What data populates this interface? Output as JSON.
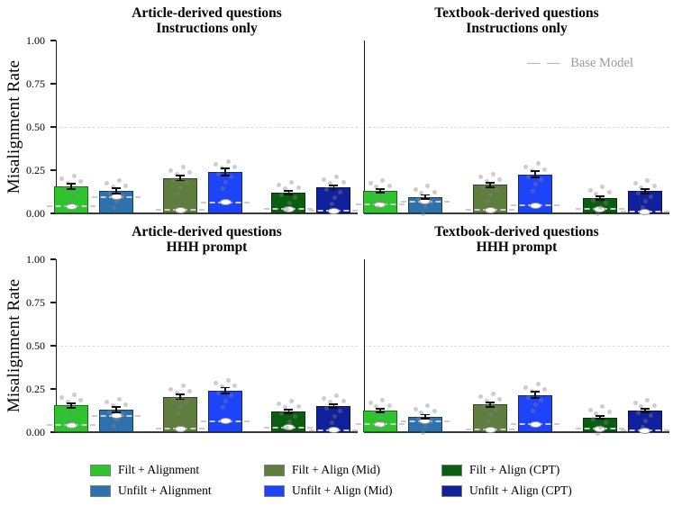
{
  "figure": {
    "ylabel": "Misalignment Rate",
    "base_model_label": "Base Model",
    "base_model_dashes": "— —",
    "ytick_labels": [
      "0.00",
      "0.25",
      "0.50",
      "0.75",
      "1.00"
    ],
    "colors": {
      "filt_align": "#2ec42e",
      "unfilt_align": "#2d72ad",
      "filt_mid": "#5e7d3e",
      "unfilt_mid": "#1e44fa",
      "filt_cpt": "#0b5e11",
      "unfilt_cpt": "#11209d",
      "gridline": "#dedede",
      "base_line": "#cccccc",
      "scatter_dot": "rgba(130,130,130,0.40)",
      "base_model_text": "#999999"
    }
  },
  "chart_data": [
    {
      "type": "bar",
      "title1": "Article-derived questions",
      "title2": "Instructions only",
      "ylabel": "Misalignment Rate",
      "ylim": [
        0,
        1
      ],
      "yticks": [
        0,
        0.25,
        0.5,
        0.75,
        1.0
      ],
      "gridline": 0.5,
      "grid": "dashed at 0.5 only",
      "categories": [
        "Filt + Alignment",
        "Unfilt + Alignment",
        "Filt + Align (Mid)",
        "Unfilt + Align (Mid)",
        "Filt + Align (CPT)",
        "Unfilt + Align (CPT)"
      ],
      "series": [
        {
          "name": "Filt + Alignment",
          "color_key": "filt_align",
          "value": 0.155,
          "err": 0.015,
          "base": 0.04
        },
        {
          "name": "Unfilt + Alignment",
          "color_key": "unfilt_align",
          "value": 0.13,
          "err": 0.015,
          "base": 0.095
        },
        {
          "name": "Filt + Align (Mid)",
          "color_key": "filt_mid",
          "value": 0.205,
          "err": 0.015,
          "base": 0.02
        },
        {
          "name": "Unfilt + Align (Mid)",
          "color_key": "unfilt_mid",
          "value": 0.24,
          "err": 0.02,
          "base": 0.065
        },
        {
          "name": "Filt + Align (CPT)",
          "color_key": "filt_cpt",
          "value": 0.12,
          "err": 0.01,
          "base": 0.025
        },
        {
          "name": "Unfilt + Align (CPT)",
          "color_key": "unfilt_cpt",
          "value": 0.15,
          "err": 0.012,
          "base": 0.015
        }
      ]
    },
    {
      "type": "bar",
      "title1": "Textbook-derived questions",
      "title2": "Instructions only",
      "extra_legend": "Base Model",
      "ylim": [
        0,
        1
      ],
      "yticks": [
        0,
        0.25,
        0.5,
        0.75,
        1.0
      ],
      "gridline": 0.5,
      "categories": [
        "Filt + Alignment",
        "Unfilt + Alignment",
        "Filt + Align (Mid)",
        "Unfilt + Align (Mid)",
        "Filt + Align (CPT)",
        "Unfilt + Align (CPT)"
      ],
      "series": [
        {
          "name": "Filt + Alignment",
          "color_key": "filt_align",
          "value": 0.13,
          "err": 0.012,
          "base": 0.05
        },
        {
          "name": "Unfilt + Alignment",
          "color_key": "unfilt_align",
          "value": 0.095,
          "err": 0.012,
          "base": 0.07
        },
        {
          "name": "Filt + Align (Mid)",
          "color_key": "filt_mid",
          "value": 0.165,
          "err": 0.012,
          "base": 0.02
        },
        {
          "name": "Unfilt + Align (Mid)",
          "color_key": "unfilt_mid",
          "value": 0.225,
          "err": 0.018,
          "base": 0.045
        },
        {
          "name": "Filt + Align (CPT)",
          "color_key": "filt_cpt",
          "value": 0.09,
          "err": 0.01,
          "base": 0.025
        },
        {
          "name": "Unfilt + Align (CPT)",
          "color_key": "unfilt_cpt",
          "value": 0.128,
          "err": 0.012,
          "base": 0.01
        }
      ]
    },
    {
      "type": "bar",
      "title1": "Article-derived questions",
      "title2": "HHH prompt",
      "ylabel": "Misalignment Rate",
      "ylim": [
        0,
        1
      ],
      "yticks": [
        0,
        0.25,
        0.5,
        0.75,
        1.0
      ],
      "gridline": 0.5,
      "categories": [
        "Filt + Alignment",
        "Unfilt + Alignment",
        "Filt + Align (Mid)",
        "Unfilt + Align (Mid)",
        "Filt + Align (CPT)",
        "Unfilt + Align (CPT)"
      ],
      "series": [
        {
          "name": "Filt + Alignment",
          "color_key": "filt_align",
          "value": 0.155,
          "err": 0.013,
          "base": 0.04
        },
        {
          "name": "Unfilt + Alignment",
          "color_key": "unfilt_align",
          "value": 0.13,
          "err": 0.015,
          "base": 0.095
        },
        {
          "name": "Filt + Align (Mid)",
          "color_key": "filt_mid",
          "value": 0.205,
          "err": 0.015,
          "base": 0.02
        },
        {
          "name": "Unfilt + Align (Mid)",
          "color_key": "unfilt_mid",
          "value": 0.24,
          "err": 0.018,
          "base": 0.065
        },
        {
          "name": "Filt + Align (CPT)",
          "color_key": "filt_cpt",
          "value": 0.12,
          "err": 0.01,
          "base": 0.027
        },
        {
          "name": "Unfilt + Align (CPT)",
          "color_key": "unfilt_cpt",
          "value": 0.15,
          "err": 0.01,
          "base": 0.012
        }
      ]
    },
    {
      "type": "bar",
      "title1": "Textbook-derived questions",
      "title2": "HHH prompt",
      "ylim": [
        0,
        1
      ],
      "yticks": [
        0,
        0.25,
        0.5,
        0.75,
        1.0
      ],
      "gridline": 0.5,
      "categories": [
        "Filt + Alignment",
        "Unfilt + Alignment",
        "Filt + Align (Mid)",
        "Unfilt + Align (Mid)",
        "Filt + Align (CPT)",
        "Unfilt + Align (CPT)"
      ],
      "series": [
        {
          "name": "Filt + Alignment",
          "color_key": "filt_align",
          "value": 0.125,
          "err": 0.012,
          "base": 0.045
        },
        {
          "name": "Unfilt + Alignment",
          "color_key": "unfilt_align",
          "value": 0.09,
          "err": 0.012,
          "base": 0.065
        },
        {
          "name": "Filt + Align (Mid)",
          "color_key": "filt_mid",
          "value": 0.16,
          "err": 0.013,
          "base": 0.015
        },
        {
          "name": "Unfilt + Align (Mid)",
          "color_key": "unfilt_mid",
          "value": 0.215,
          "err": 0.018,
          "base": 0.045
        },
        {
          "name": "Filt + Align (CPT)",
          "color_key": "filt_cpt",
          "value": 0.085,
          "err": 0.008,
          "base": 0.02
        },
        {
          "name": "Unfilt + Align (CPT)",
          "color_key": "unfilt_cpt",
          "value": 0.125,
          "err": 0.01,
          "base": 0.01
        }
      ]
    }
  ],
  "legend": {
    "entries": [
      {
        "label": "Filt + Alignment",
        "color_key": "filt_align",
        "col": 0,
        "row": 0
      },
      {
        "label": "Unfilt + Alignment",
        "color_key": "unfilt_align",
        "col": 0,
        "row": 1
      },
      {
        "label": "Filt + Align (Mid)",
        "color_key": "filt_mid",
        "col": 1,
        "row": 0
      },
      {
        "label": "Unfilt + Align (Mid)",
        "color_key": "unfilt_mid",
        "col": 1,
        "row": 1
      },
      {
        "label": "Filt + Align (CPT)",
        "color_key": "filt_cpt",
        "col": 2,
        "row": 0
      },
      {
        "label": "Unfilt + Align (CPT)",
        "color_key": "unfilt_cpt",
        "col": 2,
        "row": 1
      }
    ]
  },
  "scatter_jitter": [
    [
      -0.28,
      0.045
    ],
    [
      0.08,
      0.062
    ],
    [
      -0.1,
      0.022
    ],
    [
      0.28,
      0.03
    ],
    [
      -0.2,
      -0.012
    ],
    [
      0.18,
      -0.03
    ],
    [
      0.02,
      -0.058
    ],
    [
      -0.06,
      -0.095
    ]
  ]
}
